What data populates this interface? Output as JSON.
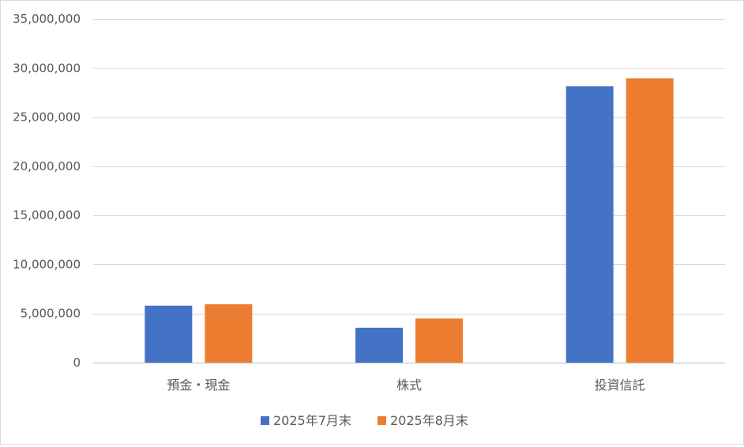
{
  "chart_data": {
    "type": "bar",
    "categories": [
      "預金・現金",
      "株式",
      "投資信託"
    ],
    "series": [
      {
        "name": "2025年7月末",
        "color": "#4472c4",
        "values": [
          5800000,
          3550000,
          28150000
        ]
      },
      {
        "name": "2025年8月末",
        "color": "#ed7d31",
        "values": [
          5950000,
          4500000,
          28950000
        ]
      }
    ],
    "ylim": [
      0,
      35000000
    ],
    "yticks": [
      0,
      5000000,
      10000000,
      15000000,
      20000000,
      25000000,
      30000000,
      35000000
    ],
    "ytick_labels": [
      "0",
      "5,000,000",
      "10,000,000",
      "15,000,000",
      "20,000,000",
      "25,000,000",
      "30,000,000",
      "35,000,000"
    ],
    "grid": true,
    "legend_position": "bottom",
    "gridline_color": "#d9d9d9",
    "axis_color": "#bfbfbf"
  }
}
